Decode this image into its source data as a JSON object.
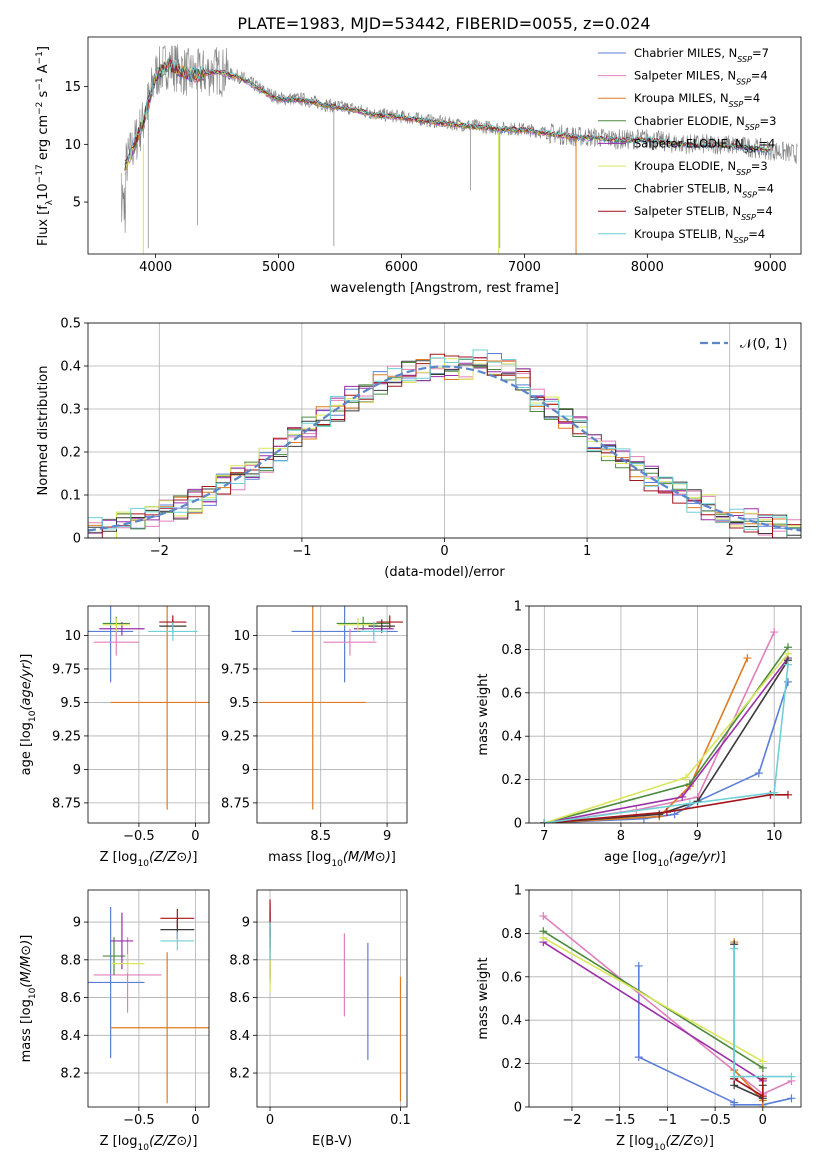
{
  "title": "PLATE=1983, MJD=53442, FIBERID=0055, z=0.024",
  "colors": {
    "Chabrier MILES": "#5b7fd6",
    "Salpeter MILES": "#e07fbd",
    "Kroupa MILES": "#e07b20",
    "Chabrier ELODIE": "#4c8a3d",
    "Salpeter ELODIE": "#9b2fa8",
    "Kroupa ELODIE": "#d9e65c",
    "Chabrier STELIB": "#3a3a3a",
    "Salpeter STELIB": "#a3141c",
    "Kroupa STELIB": "#6fd1d6",
    "data": "#808080",
    "normal": "#5b86c9"
  },
  "chart_data": [
    {
      "id": "spectrum",
      "type": "line",
      "xlabel": "wavelength [Angstrom, rest frame]",
      "ylabel": "Flux [f_λ 10^-17 erg cm^-2 s^-1 A^-1]",
      "xlim": [
        3450,
        9250
      ],
      "ylim": [
        0.5,
        19.3
      ],
      "xticks": [
        4000,
        5000,
        6000,
        7000,
        8000,
        9000
      ],
      "yticks": [
        5,
        10,
        15
      ],
      "legend": "top-right",
      "legend_entries": [
        {
          "name": "Chabrier MILES",
          "n": "7"
        },
        {
          "name": "Salpeter MILES",
          "n": "4"
        },
        {
          "name": "Kroupa MILES",
          "n": "4"
        },
        {
          "name": "Chabrier ELODIE",
          "n": "3"
        },
        {
          "name": "Salpeter ELODIE",
          "n": "4"
        },
        {
          "name": "Kroupa ELODIE",
          "n": "3"
        },
        {
          "name": "Chabrier STELIB",
          "n": "4"
        },
        {
          "name": "Salpeter STELIB",
          "n": "4"
        },
        {
          "name": "Kroupa STELIB",
          "n": "4"
        }
      ],
      "data_x": [
        3750,
        3900,
        4000,
        4100,
        4200,
        4300,
        4400,
        4500,
        4700,
        4900,
        5000,
        5200,
        5400,
        5600,
        5800,
        6000,
        6200,
        6400,
        6600,
        6800,
        7000,
        7200,
        7400,
        7600,
        7800,
        8000,
        8200,
        8400,
        8600,
        8800,
        9000,
        9200
      ],
      "data_y": [
        8,
        12,
        16,
        17,
        16.5,
        16,
        16.2,
        16.4,
        15.8,
        14.5,
        14,
        13.9,
        13.4,
        13.1,
        12.6,
        12.4,
        12.1,
        11.8,
        11.6,
        11.4,
        11.3,
        11.0,
        10.7,
        10.6,
        10.4,
        10.5,
        10.1,
        10.0,
        10.0,
        9.8,
        9.5,
        9.2
      ]
    },
    {
      "id": "residuals",
      "type": "histogram",
      "xlabel": "(data-model)/error",
      "ylabel": "Normed distribution",
      "xlim": [
        -2.5,
        2.5
      ],
      "ylim": [
        0,
        0.5
      ],
      "xticks": [
        -2,
        -1,
        0,
        1,
        2
      ],
      "yticks": [
        0.0,
        0.1,
        0.2,
        0.3,
        0.4,
        0.5
      ],
      "legend": "top-right",
      "legend_label": "𝒩(0, 1)",
      "bins": [
        -2.5,
        -2.4,
        -2.3,
        -2.2,
        -2.1,
        -2.0,
        -1.9,
        -1.8,
        -1.7,
        -1.6,
        -1.5,
        -1.4,
        -1.3,
        -1.2,
        -1.1,
        -1.0,
        -0.9,
        -0.8,
        -0.7,
        -0.6,
        -0.5,
        -0.4,
        -0.3,
        -0.2,
        -0.1,
        0.0,
        0.1,
        0.2,
        0.3,
        0.4,
        0.5,
        0.6,
        0.7,
        0.8,
        0.9,
        1.0,
        1.1,
        1.2,
        1.3,
        1.4,
        1.5,
        1.6,
        1.7,
        1.8,
        1.9,
        2.0,
        2.1,
        2.2,
        2.3,
        2.4
      ]
    },
    {
      "id": "age-vs-Z",
      "type": "errorbar",
      "xlabel": "Z [log10(Z/Z⊙)]",
      "ylabel": "age  [log10(age/yr)]",
      "xlim": [
        -0.95,
        0.12
      ],
      "ylim": [
        8.6,
        10.22
      ],
      "xticks": [
        -0.5,
        0.0
      ],
      "yticks": [
        8.75,
        9.0,
        9.25,
        9.5,
        9.75,
        10.0
      ],
      "points": [
        {
          "s": "Chabrier MILES",
          "x": -0.75,
          "y": 10.03,
          "xe": 0.2,
          "ye": 0.38
        },
        {
          "s": "Salpeter MILES",
          "x": -0.7,
          "y": 9.95,
          "xe": 0.2,
          "ye": 0.1
        },
        {
          "s": "Kroupa MILES",
          "x": -0.25,
          "y": 9.5,
          "xe": 0.5,
          "ye": 0.8
        },
        {
          "s": "Chabrier ELODIE",
          "x": -0.7,
          "y": 10.09,
          "xe": 0.12,
          "ye": 0.05
        },
        {
          "s": "Salpeter ELODIE",
          "x": -0.65,
          "y": 10.05,
          "xe": 0.2,
          "ye": 0.05
        },
        {
          "s": "Kroupa ELODIE",
          "x": -0.7,
          "y": 10.08,
          "xe": 0.12,
          "ye": 0.05
        },
        {
          "s": "Chabrier STELIB",
          "x": -0.2,
          "y": 10.07,
          "xe": 0.12,
          "ye": 0.05
        },
        {
          "s": "Salpeter STELIB",
          "x": -0.2,
          "y": 10.1,
          "xe": 0.12,
          "ye": 0.05
        },
        {
          "s": "Kroupa STELIB",
          "x": -0.2,
          "y": 10.03,
          "xe": 0.22,
          "ye": 0.07
        }
      ]
    },
    {
      "id": "age-vs-mass",
      "type": "errorbar",
      "xlabel": "mass [log10(M/M⊙)]",
      "ylabel": "",
      "xlim": [
        8.02,
        9.15
      ],
      "ylim": [
        8.6,
        10.22
      ],
      "xticks": [
        8.5,
        9.0
      ],
      "yticks": [
        8.75,
        9.0,
        9.25,
        9.5,
        9.75,
        10.0
      ],
      "points": [
        {
          "s": "Chabrier MILES",
          "x": 8.68,
          "y": 10.03,
          "xe": 0.4,
          "ye": 0.38
        },
        {
          "s": "Salpeter MILES",
          "x": 8.72,
          "y": 9.95,
          "xe": 0.2,
          "ye": 0.1
        },
        {
          "s": "Kroupa MILES",
          "x": 8.44,
          "y": 9.5,
          "xe": 0.4,
          "ye": 0.8
        },
        {
          "s": "Chabrier ELODIE",
          "x": 8.82,
          "y": 10.09,
          "xe": 0.2,
          "ye": 0.05
        },
        {
          "s": "Salpeter ELODIE",
          "x": 8.9,
          "y": 10.05,
          "xe": 0.15,
          "ye": 0.05
        },
        {
          "s": "Kroupa ELODIE",
          "x": 8.78,
          "y": 10.08,
          "xe": 0.15,
          "ye": 0.05
        },
        {
          "s": "Chabrier STELIB",
          "x": 8.96,
          "y": 10.07,
          "xe": 0.1,
          "ye": 0.05
        },
        {
          "s": "Salpeter STELIB",
          "x": 9.02,
          "y": 10.1,
          "xe": 0.1,
          "ye": 0.05
        },
        {
          "s": "Kroupa STELIB",
          "x": 8.9,
          "y": 10.03,
          "xe": 0.1,
          "ye": 0.07
        }
      ]
    },
    {
      "id": "weight-vs-age",
      "type": "line",
      "xlabel": "age  [log10(age/yr)]",
      "ylabel": "mass weight",
      "xlim": [
        6.8,
        10.35
      ],
      "ylim": [
        0,
        1.0
      ],
      "xticks": [
        7,
        8,
        9,
        10
      ],
      "yticks": [
        0.0,
        0.2,
        0.4,
        0.6,
        0.8,
        1.0
      ],
      "series": [
        {
          "s": "Chabrier MILES",
          "x": [
            7.0,
            8.3,
            8.7,
            9.0,
            9.8,
            10.18
          ],
          "y": [
            0.0,
            0.02,
            0.04,
            0.1,
            0.23,
            0.65
          ]
        },
        {
          "s": "Salpeter MILES",
          "x": [
            7.0,
            8.2,
            9.0,
            10.0
          ],
          "y": [
            0.0,
            0.06,
            0.12,
            0.88
          ]
        },
        {
          "s": "Kroupa MILES",
          "x": [
            7.0,
            8.5,
            8.9,
            9.65
          ],
          "y": [
            0.0,
            0.03,
            0.17,
            0.76
          ]
        },
        {
          "s": "Chabrier ELODIE",
          "x": [
            7.0,
            8.9,
            10.18
          ],
          "y": [
            0.0,
            0.18,
            0.81
          ]
        },
        {
          "s": "Salpeter ELODIE",
          "x": [
            7.0,
            8.8,
            10.18
          ],
          "y": [
            0.0,
            0.12,
            0.76
          ]
        },
        {
          "s": "Kroupa ELODIE",
          "x": [
            7.0,
            8.85,
            10.18
          ],
          "y": [
            0.0,
            0.21,
            0.78
          ]
        },
        {
          "s": "Chabrier STELIB",
          "x": [
            7.0,
            8.5,
            9.0,
            10.18
          ],
          "y": [
            0.0,
            0.04,
            0.1,
            0.75
          ]
        },
        {
          "s": "Salpeter STELIB",
          "x": [
            7.0,
            8.6,
            9.95,
            10.18
          ],
          "y": [
            0.0,
            0.05,
            0.13,
            0.13
          ]
        },
        {
          "s": "Kroupa STELIB",
          "x": [
            7.0,
            8.9,
            10.0,
            10.18
          ],
          "y": [
            0.0,
            0.09,
            0.14,
            0.73
          ]
        }
      ]
    },
    {
      "id": "mass-vs-Z",
      "type": "errorbar",
      "xlabel": "Z [log10(Z/Z⊙)]",
      "ylabel": "mass [log10(M/M⊙)]",
      "xlim": [
        -0.95,
        0.12
      ],
      "ylim": [
        8.02,
        9.17
      ],
      "xticks": [
        -0.5,
        0.0
      ],
      "yticks": [
        8.2,
        8.4,
        8.6,
        8.8,
        9.0
      ],
      "points": [
        {
          "s": "Chabrier MILES",
          "x": -0.75,
          "y": 8.68,
          "xe": 0.3,
          "ye": 0.4
        },
        {
          "s": "Salpeter MILES",
          "x": -0.6,
          "y": 8.72,
          "xe": 0.3,
          "ye": 0.2
        },
        {
          "s": "Kroupa MILES",
          "x": -0.25,
          "y": 8.44,
          "xe": 0.5,
          "ye": 0.4
        },
        {
          "s": "Chabrier ELODIE",
          "x": -0.72,
          "y": 8.82,
          "xe": 0.1,
          "ye": 0.1
        },
        {
          "s": "Salpeter ELODIE",
          "x": -0.65,
          "y": 8.9,
          "xe": 0.1,
          "ye": 0.15
        },
        {
          "s": "Kroupa ELODIE",
          "x": -0.6,
          "y": 8.78,
          "xe": 0.15,
          "ye": 0.05
        },
        {
          "s": "Chabrier STELIB",
          "x": -0.16,
          "y": 8.96,
          "xe": 0.15,
          "ye": 0.05
        },
        {
          "s": "Salpeter STELIB",
          "x": -0.16,
          "y": 9.02,
          "xe": 0.15,
          "ye": 0.05
        },
        {
          "s": "Kroupa STELIB",
          "x": -0.16,
          "y": 8.9,
          "xe": 0.15,
          "ye": 0.05
        }
      ]
    },
    {
      "id": "mass-vs-EBV",
      "type": "errorbar",
      "xlabel": "E(B-V)",
      "ylabel": "",
      "xlim": [
        -0.01,
        0.105
      ],
      "ylim": [
        8.02,
        9.17
      ],
      "xticks": [
        0.0,
        0.1
      ],
      "yticks": [
        8.2,
        8.4,
        8.6,
        8.8,
        9.0
      ],
      "points": [
        {
          "s": "Chabrier MILES",
          "x": 0.075,
          "y": 8.58,
          "xe": 0,
          "ye": 0.31
        },
        {
          "s": "Salpeter MILES",
          "x": 0.057,
          "y": 8.72,
          "xe": 0,
          "ye": 0.22
        },
        {
          "s": "Kroupa MILES",
          "x": 0.1,
          "y": 8.38,
          "xe": 0,
          "ye": 0.33
        },
        {
          "s": "Chabrier ELODIE",
          "x": 0.0,
          "y": 8.82,
          "xe": 0,
          "ye": 0.15
        },
        {
          "s": "Salpeter ELODIE",
          "x": 0.0,
          "y": 8.9,
          "xe": 0,
          "ye": 0.2
        },
        {
          "s": "Kroupa ELODIE",
          "x": 0.0,
          "y": 8.78,
          "xe": 0,
          "ye": 0.15
        },
        {
          "s": "Chabrier STELIB",
          "x": 0.0,
          "y": 8.96,
          "xe": 0,
          "ye": 0.1
        },
        {
          "s": "Salpeter STELIB",
          "x": 0.0,
          "y": 9.02,
          "xe": 0,
          "ye": 0.1
        },
        {
          "s": "Kroupa STELIB",
          "x": 0.0,
          "y": 8.9,
          "xe": 0,
          "ye": 0.1
        }
      ]
    },
    {
      "id": "weight-vs-Z",
      "type": "line",
      "xlabel": "Z [log10(Z/Z⊙)]",
      "ylabel": "mass weight",
      "xlim": [
        -2.45,
        0.4
      ],
      "ylim": [
        0,
        1.0
      ],
      "xticks": [
        -2.0,
        -1.5,
        -1.0,
        -0.5,
        0.0
      ],
      "yticks": [
        0.0,
        0.2,
        0.4,
        0.6,
        0.8,
        1.0
      ],
      "series": [
        {
          "s": "Chabrier MILES",
          "x": [
            -1.3,
            -1.3,
            -0.3,
            -0.3,
            0.0,
            0.3
          ],
          "y": [
            0.65,
            0.23,
            0.02,
            0.01,
            0.01,
            0.04
          ]
        },
        {
          "s": "Salpeter MILES",
          "x": [
            -2.3,
            0.0,
            0.3
          ],
          "y": [
            0.88,
            0.06,
            0.12
          ]
        },
        {
          "s": "Kroupa MILES",
          "x": [
            -0.3,
            -0.3,
            0.0,
            0.0
          ],
          "y": [
            0.76,
            0.17,
            0.03,
            0.0
          ]
        },
        {
          "s": "Chabrier ELODIE",
          "x": [
            -2.3,
            0.0
          ],
          "y": [
            0.81,
            0.18
          ]
        },
        {
          "s": "Salpeter ELODIE",
          "x": [
            -2.3,
            0.0
          ],
          "y": [
            0.76,
            0.12
          ]
        },
        {
          "s": "Kroupa ELODIE",
          "x": [
            -2.3,
            0.0
          ],
          "y": [
            0.78,
            0.21
          ]
        },
        {
          "s": "Chabrier STELIB",
          "x": [
            -0.3,
            -0.3,
            0.0,
            0.0
          ],
          "y": [
            0.75,
            0.1,
            0.04,
            0.1
          ]
        },
        {
          "s": "Salpeter STELIB",
          "x": [
            -0.3,
            -0.3,
            0.0,
            0.0
          ],
          "y": [
            0.13,
            0.13,
            0.05,
            0.13
          ]
        },
        {
          "s": "Kroupa STELIB",
          "x": [
            -0.3,
            -0.3,
            0.3
          ],
          "y": [
            0.73,
            0.14,
            0.14
          ]
        }
      ]
    }
  ]
}
